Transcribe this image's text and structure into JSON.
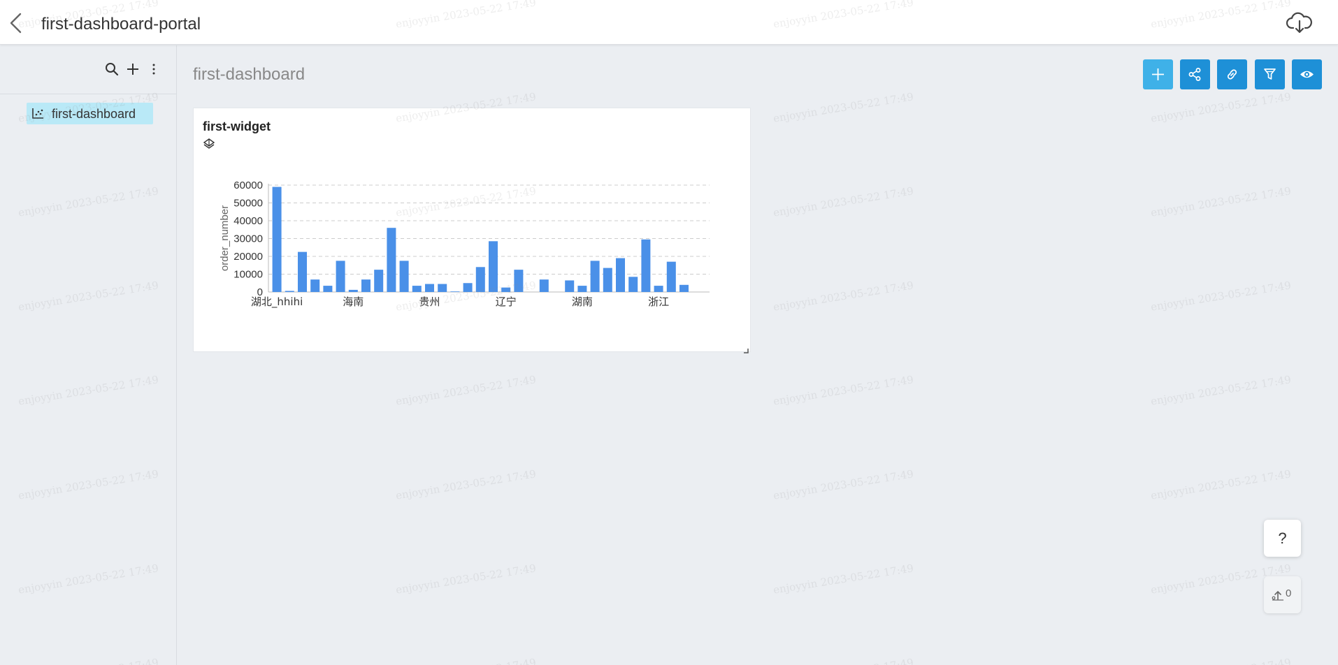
{
  "header": {
    "title": "first-dashboard-portal"
  },
  "sidebar": {
    "items": [
      {
        "label": "first-dashboard",
        "selected": true
      }
    ]
  },
  "dashboard": {
    "title": "first-dashboard"
  },
  "widget": {
    "title": "first-widget"
  },
  "chart_data": {
    "type": "bar",
    "ylabel": "order_number",
    "ylim": [
      0,
      60000
    ],
    "yticks": [
      "0",
      "10000",
      "20000",
      "30000",
      "40000",
      "50000",
      "60000"
    ],
    "visible_xtick_labels": {
      "0": "湖北_hhihi",
      "6": "海南",
      "12": "贵州",
      "18": "辽宁",
      "24": "湖南",
      "30": "浙江"
    },
    "values": [
      59000,
      600,
      22500,
      7000,
      3500,
      17500,
      1200,
      7000,
      12500,
      36000,
      17500,
      3500,
      4500,
      4500,
      300,
      5000,
      14000,
      28500,
      2500,
      12500,
      0,
      7000,
      0,
      6500,
      3500,
      17500,
      13500,
      19000,
      8500,
      29500,
      3500,
      17000,
      4000
    ],
    "color": "#4a90e8",
    "grid": true
  },
  "floating": {
    "help_label": "?",
    "upload_count": "0"
  },
  "watermark": {
    "text": "enjoyyin 2023-05-22 17:49"
  },
  "colors": {
    "primary_button": "#1e90d7",
    "add_button": "#3fb1e8",
    "selected_item": "#b9e9f7"
  }
}
